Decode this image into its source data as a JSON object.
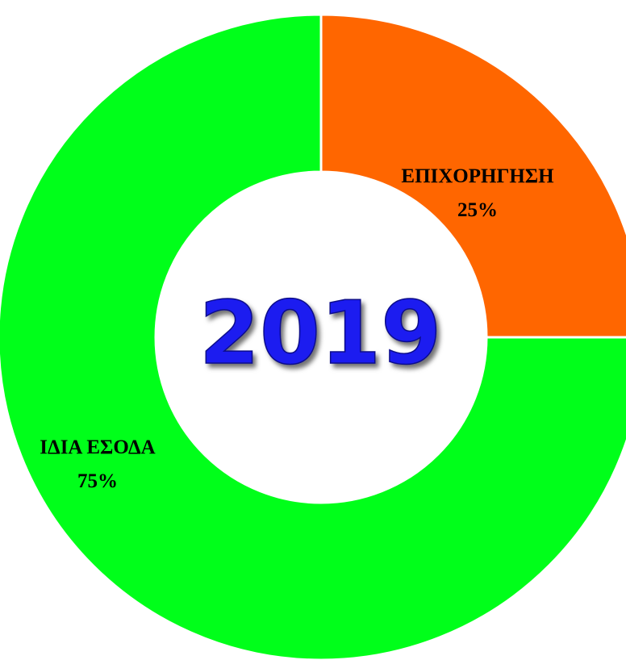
{
  "chart_data": {
    "type": "pie",
    "donut": true,
    "center_label": "2019",
    "slices": [
      {
        "label": "ΕΠΙΧΟΡΗΓΗΣΗ",
        "value": 25,
        "value_label": "25%",
        "color": "#ff6600"
      },
      {
        "label": "ΙΔΙΑ ΕΣΟΔΑ",
        "value": 75,
        "value_label": "75%",
        "color": "#00ff1a"
      }
    ],
    "start_angle": "12 o'clock, clockwise",
    "legend": "none"
  },
  "colors": {
    "center_text": "#1b1ef0",
    "background": "#ffffff",
    "slice_separator": "#ffffff"
  }
}
